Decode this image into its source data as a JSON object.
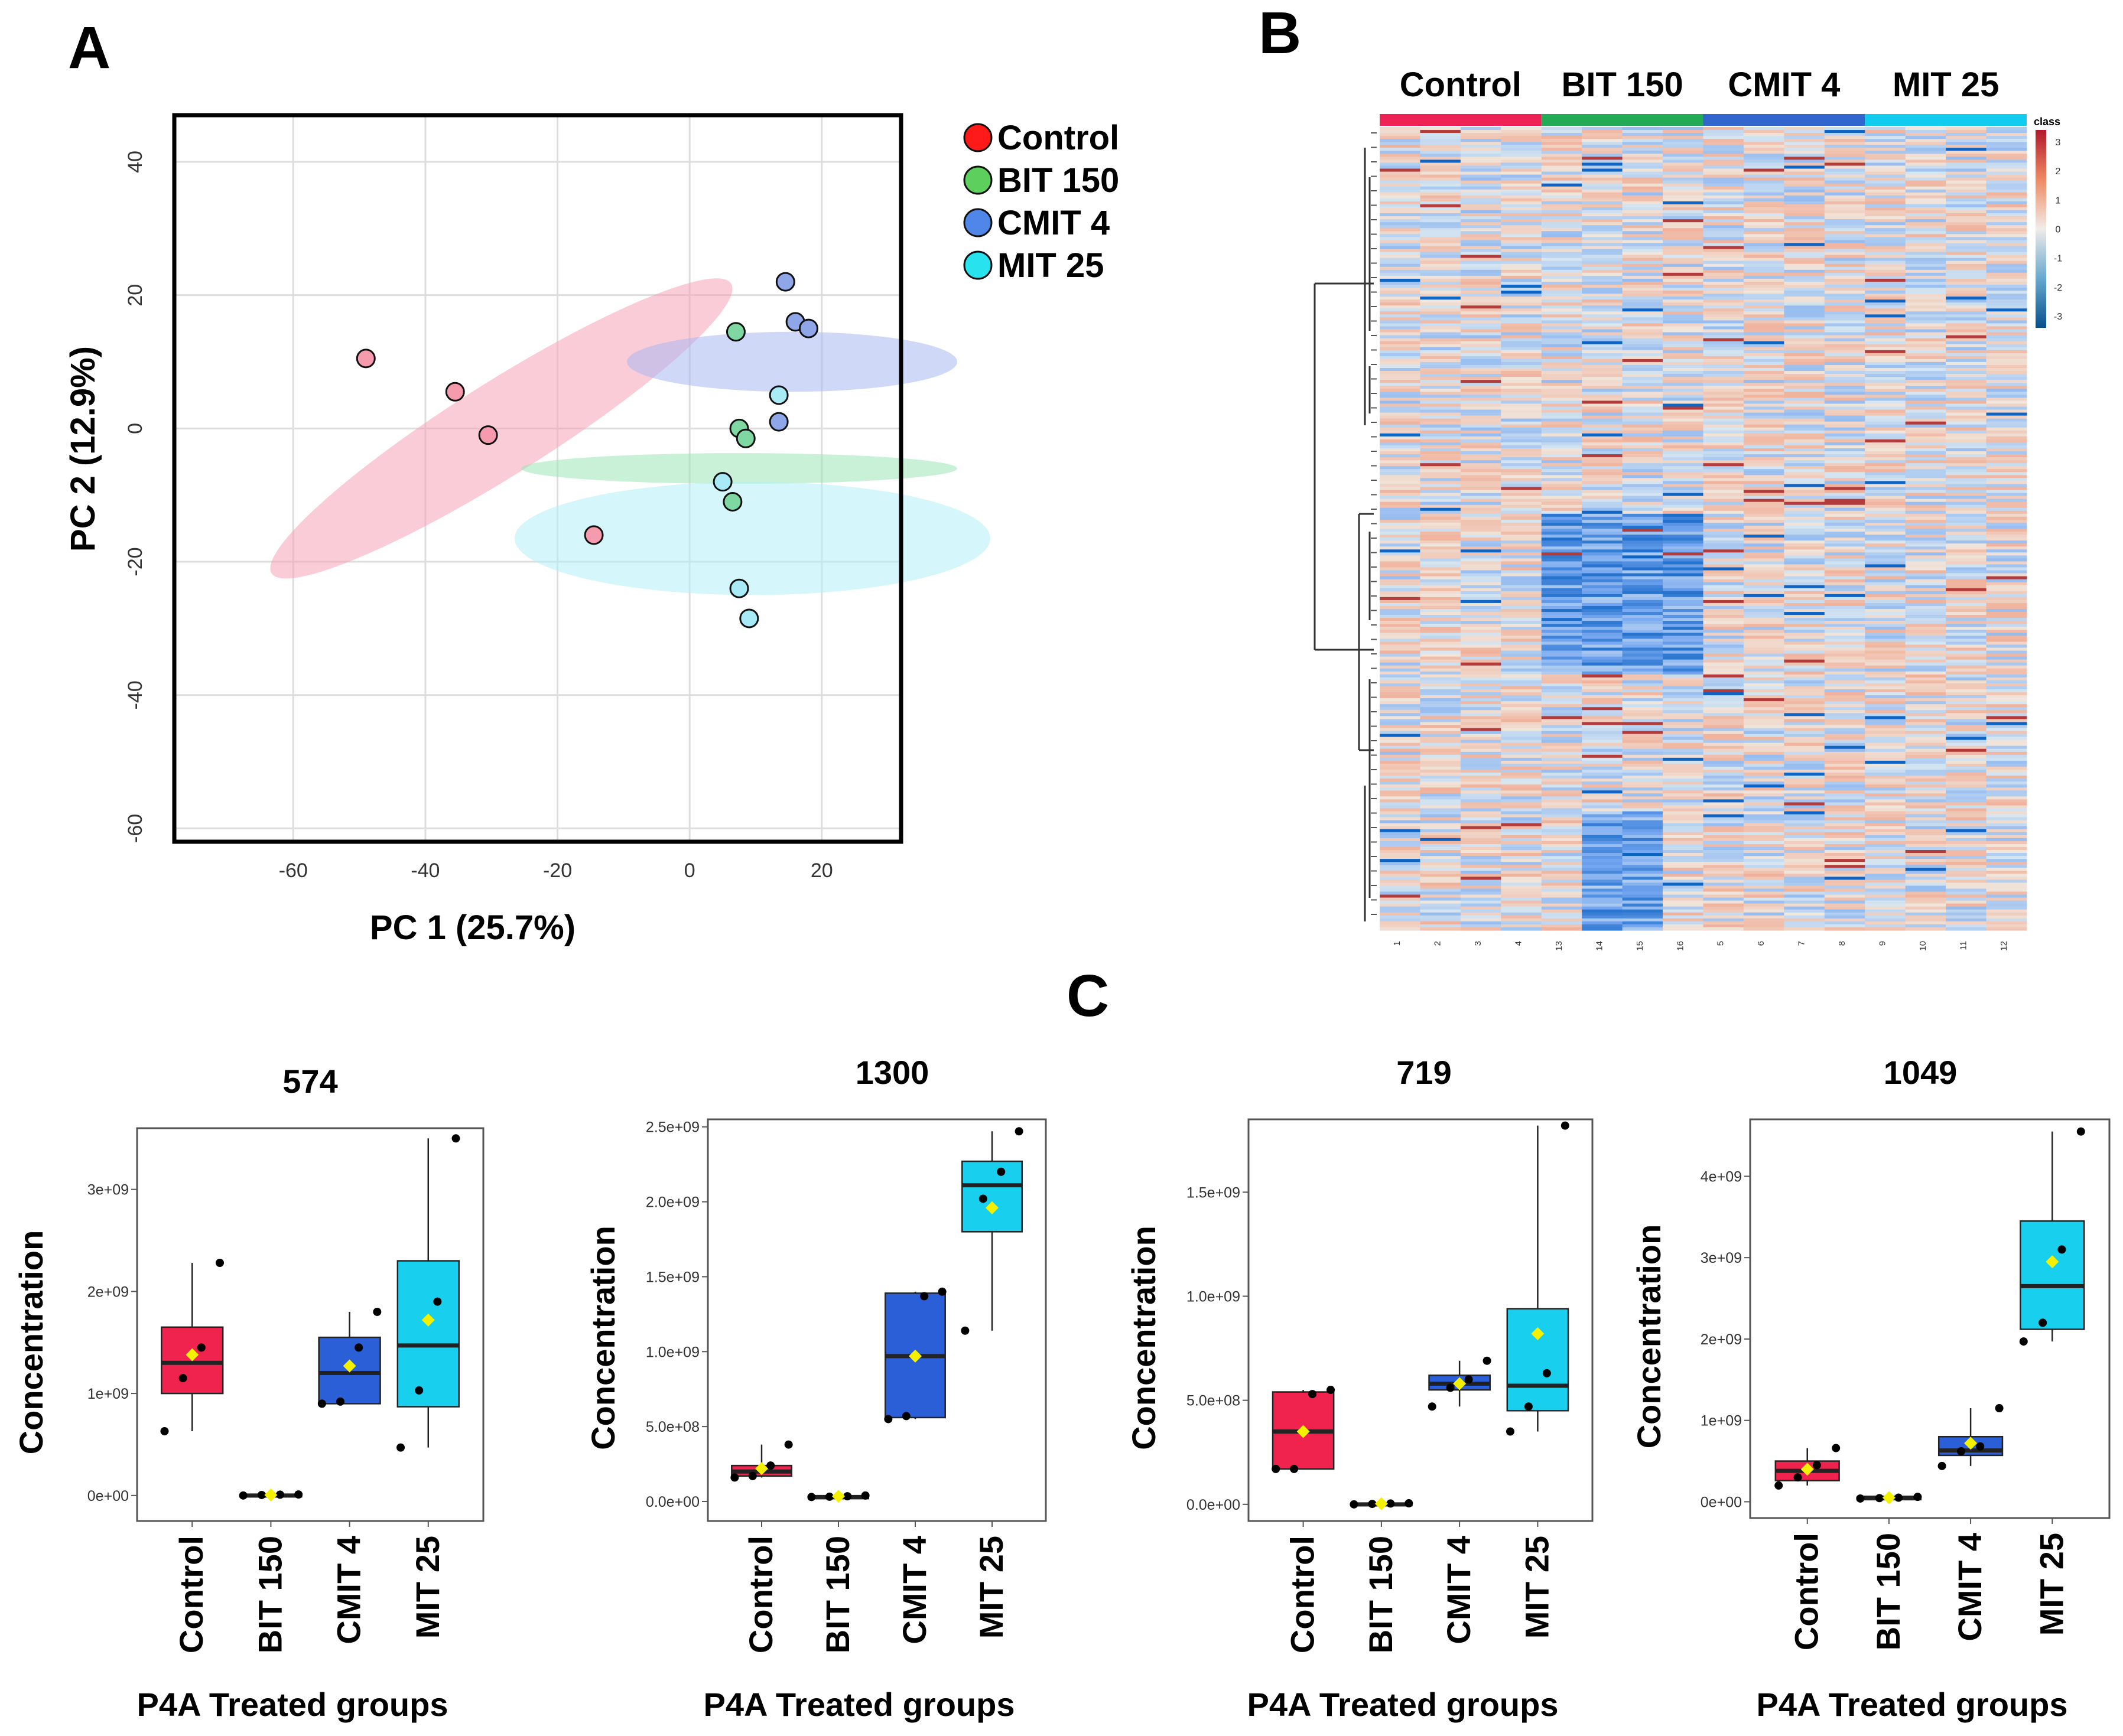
{
  "panels": {
    "a": "A",
    "b": "B",
    "c": "C"
  },
  "colors": {
    "Control": "#f0224e",
    "BIT 150": "#2e9e2e",
    "CMIT 4": "#2a5fd8",
    "MIT 25": "#19cfee"
  },
  "chart_data": [
    {
      "id": "pca",
      "type": "scatter",
      "xlabel": "PC 1 (25.7%)",
      "ylabel": "PC 2 (12.9%)",
      "xlim": [
        -78,
        32
      ],
      "ylim": [
        -62,
        47
      ],
      "xticks": [
        -60,
        -40,
        -20,
        0,
        20
      ],
      "yticks": [
        40,
        20,
        0,
        -20,
        -40,
        -60
      ],
      "legend": {
        "position": "right",
        "entries": [
          {
            "name": "Control",
            "color": "#ff1a1a"
          },
          {
            "name": "BIT 150",
            "color": "#5ccf5c"
          },
          {
            "name": "CMIT 4",
            "color": "#4f86e8"
          },
          {
            "name": "MIT 25",
            "color": "#28e2ee"
          }
        ]
      },
      "series": [
        {
          "name": "Control",
          "point_color": "#f69aae",
          "ellipse_color": "#f5a3b6",
          "points": [
            [
              -49,
              10.5
            ],
            [
              -35.5,
              5.5
            ],
            [
              -30.5,
              -1
            ],
            [
              -14.5,
              -16
            ]
          ],
          "ellipse": {
            "cx": -28.5,
            "cy": 0,
            "rx": 41,
            "ry": 7,
            "angle_data_deg": -32
          }
        },
        {
          "name": "BIT 150",
          "point_color": "#7fd7a2",
          "ellipse_color": "#9be5b6",
          "points": [
            [
              7,
              14.5
            ],
            [
              7.5,
              0
            ],
            [
              8.5,
              -1.5
            ],
            [
              6.5,
              -11
            ]
          ],
          "ellipse": {
            "cx": 7.5,
            "cy": -6,
            "rx": 2.3,
            "ry": 33,
            "angle_data_deg": 90
          }
        },
        {
          "name": "CMIT 4",
          "point_color": "#8fa6e8",
          "ellipse_color": "#aab8f0",
          "points": [
            [
              14.5,
              22
            ],
            [
              16,
              16
            ],
            [
              18,
              15
            ],
            [
              13.5,
              1
            ]
          ],
          "ellipse": {
            "cx": 15.5,
            "cy": 10,
            "rx": 4.5,
            "ry": 25,
            "angle_data_deg": 90
          }
        },
        {
          "name": "MIT 25",
          "point_color": "#a8eaf5",
          "ellipse_color": "#b2eef7",
          "points": [
            [
              13.5,
              5
            ],
            [
              5,
              -8
            ],
            [
              7.5,
              -24
            ],
            [
              9,
              -28.5
            ]
          ],
          "ellipse": {
            "cx": 9.5,
            "cy": -16.5,
            "rx": 8.5,
            "ry": 36,
            "angle_data_deg": 90
          }
        }
      ]
    },
    {
      "id": "heatmap",
      "type": "heatmap",
      "groups": [
        "Control",
        "BIT 150",
        "CMIT 4",
        "MIT 25"
      ],
      "group_colors": [
        "#ee2255",
        "#22aa55",
        "#3366cc",
        "#11ccee"
      ],
      "columns": [
        "1",
        "2",
        "3",
        "4",
        "13",
        "14",
        "15",
        "16",
        "5",
        "6",
        "7",
        "8",
        "9",
        "10",
        "11",
        "12"
      ],
      "colorbar_title": "class",
      "colorbar_ticks": [
        "3",
        "2",
        "1",
        "0",
        "-1",
        "-2",
        "-3"
      ],
      "scale": [
        -3,
        3
      ]
    },
    {
      "id": "box-574",
      "type": "box",
      "title": "574",
      "xlabel": "P4A Treated groups",
      "ylabel": "Concentration",
      "ylim": [
        -250000000.0,
        3600000000.0
      ],
      "yticks": [
        {
          "v": 0,
          "label": "0e+00"
        },
        {
          "v": 1000000000.0,
          "label": "1e+09"
        },
        {
          "v": 2000000000.0,
          "label": "2e+09"
        },
        {
          "v": 3000000000.0,
          "label": "3e+09"
        }
      ],
      "categories": [
        "Control",
        "BIT 150",
        "CMIT 4",
        "MIT 25"
      ],
      "boxes": [
        {
          "min": 630000000.0,
          "q1": 1000000000.0,
          "median": 1300000000.0,
          "q3": 1650000000.0,
          "max": 2280000000.0,
          "mean": 1380000000.0,
          "points": [
            630000000.0,
            1150000000.0,
            1450000000.0,
            2280000000.0
          ]
        },
        {
          "min": 0.0,
          "q1": 0.0,
          "median": 0.0,
          "q3": 10000000.0,
          "max": 10000000.0,
          "mean": 5000000.0,
          "points": [
            0.0,
            5000000.0,
            8000000.0,
            10000000.0
          ]
        },
        {
          "min": 900000000.0,
          "q1": 900000000.0,
          "median": 1200000000.0,
          "q3": 1550000000.0,
          "max": 1800000000.0,
          "mean": 1270000000.0,
          "points": [
            900000000.0,
            920000000.0,
            1450000000.0,
            1800000000.0
          ]
        },
        {
          "min": 470000000.0,
          "q1": 870000000.0,
          "median": 1470000000.0,
          "q3": 2300000000.0,
          "max": 3500000000.0,
          "mean": 1720000000.0,
          "points": [
            470000000.0,
            1030000000.0,
            1900000000.0,
            3500000000.0
          ]
        }
      ]
    },
    {
      "id": "box-1300",
      "type": "box",
      "title": "1300",
      "xlabel": "P4A Treated groups",
      "ylabel": "Concentration",
      "ylim": [
        -130000000.0,
        2550000000.0
      ],
      "yticks": [
        {
          "v": 0,
          "label": "0.0e+00"
        },
        {
          "v": 500000000.0,
          "label": "5.0e+08"
        },
        {
          "v": 1000000000.0,
          "label": "1.0e+09"
        },
        {
          "v": 1500000000.0,
          "label": "1.5e+09"
        },
        {
          "v": 2000000000.0,
          "label": "2.0e+09"
        },
        {
          "v": 2500000000.0,
          "label": "2.5e+09"
        }
      ],
      "categories": [
        "Control",
        "BIT 150",
        "CMIT 4",
        "MIT 25"
      ],
      "boxes": [
        {
          "min": 160000000.0,
          "q1": 170000000.0,
          "median": 200000000.0,
          "q3": 240000000.0,
          "max": 380000000.0,
          "mean": 220000000.0,
          "points": [
            160000000.0,
            170000000.0,
            240000000.0,
            380000000.0
          ]
        },
        {
          "min": 30000000.0,
          "q1": 30000000.0,
          "median": 30000000.0,
          "q3": 35000000.0,
          "max": 40000000.0,
          "mean": 35000000.0,
          "points": [
            30000000.0,
            32000000.0,
            35000000.0,
            40000000.0
          ]
        },
        {
          "min": 550000000.0,
          "q1": 560000000.0,
          "median": 970000000.0,
          "q3": 1390000000.0,
          "max": 1400000000.0,
          "mean": 970000000.0,
          "points": [
            550000000.0,
            570000000.0,
            1370000000.0,
            1400000000.0
          ]
        },
        {
          "min": 1140000000.0,
          "q1": 1800000000.0,
          "median": 2110000000.0,
          "q3": 2270000000.0,
          "max": 2470000000.0,
          "mean": 1960000000.0,
          "points": [
            1140000000.0,
            2020000000.0,
            2200000000.0,
            2470000000.0
          ]
        }
      ]
    },
    {
      "id": "box-719",
      "type": "box",
      "title": "719",
      "xlabel": "P4A Treated groups",
      "ylabel": "Concentration",
      "ylim": [
        -80000000.0,
        1850000000.0
      ],
      "yticks": [
        {
          "v": 0,
          "label": "0.0e+00"
        },
        {
          "v": 500000000.0,
          "label": "5.0e+08"
        },
        {
          "v": 1000000000.0,
          "label": "1.0e+09"
        },
        {
          "v": 1500000000.0,
          "label": "1.5e+09"
        }
      ],
      "categories": [
        "Control",
        "BIT 150",
        "CMIT 4",
        "MIT 25"
      ],
      "boxes": [
        {
          "min": 170000000.0,
          "q1": 170000000.0,
          "median": 350000000.0,
          "q3": 540000000.0,
          "max": 550000000.0,
          "mean": 350000000.0,
          "points": [
            170000000.0,
            170000000.0,
            530000000.0,
            550000000.0
          ]
        },
        {
          "min": 0.0,
          "q1": 0.0,
          "median": 0.0,
          "q3": 5000000.0,
          "max": 5000000.0,
          "mean": 3000000.0,
          "points": [
            0.0,
            2000000.0,
            4000000.0,
            5000000.0
          ]
        },
        {
          "min": 470000000.0,
          "q1": 550000000.0,
          "median": 580000000.0,
          "q3": 620000000.0,
          "max": 690000000.0,
          "mean": 580000000.0,
          "points": [
            470000000.0,
            560000000.0,
            600000000.0,
            690000000.0
          ]
        },
        {
          "min": 350000000.0,
          "q1": 450000000.0,
          "median": 570000000.0,
          "q3": 940000000.0,
          "max": 1820000000.0,
          "mean": 820000000.0,
          "points": [
            350000000.0,
            470000000.0,
            630000000.0,
            1820000000.0
          ]
        }
      ]
    },
    {
      "id": "box-1049",
      "type": "box",
      "title": "1049",
      "xlabel": "P4A Treated groups",
      "ylabel": "Concentration",
      "ylim": [
        -200000000.0,
        4700000000.0
      ],
      "yticks": [
        {
          "v": 0,
          "label": "0e+00"
        },
        {
          "v": 1000000000.0,
          "label": "1e+09"
        },
        {
          "v": 2000000000.0,
          "label": "2e+09"
        },
        {
          "v": 3000000000.0,
          "label": "3e+09"
        },
        {
          "v": 4000000000.0,
          "label": "4e+09"
        }
      ],
      "categories": [
        "Control",
        "BIT 150",
        "CMIT 4",
        "MIT 25"
      ],
      "boxes": [
        {
          "min": 200000000.0,
          "q1": 260000000.0,
          "median": 380000000.0,
          "q3": 500000000.0,
          "max": 660000000.0,
          "mean": 400000000.0,
          "points": [
            200000000.0,
            300000000.0,
            450000000.0,
            660000000.0
          ]
        },
        {
          "min": 40000000.0,
          "q1": 40000000.0,
          "median": 50000000.0,
          "q3": 55000000.0,
          "max": 60000000.0,
          "mean": 50000000.0,
          "points": [
            40000000.0,
            45000000.0,
            50000000.0,
            60000000.0
          ]
        },
        {
          "min": 440000000.0,
          "q1": 570000000.0,
          "median": 630000000.0,
          "q3": 800000000.0,
          "max": 1150000000.0,
          "mean": 720000000.0,
          "points": [
            440000000.0,
            620000000.0,
            680000000.0,
            1150000000.0
          ]
        },
        {
          "min": 1970000000.0,
          "q1": 2120000000.0,
          "median": 2650000000.0,
          "q3": 3450000000.0,
          "max": 4550000000.0,
          "mean": 2950000000.0,
          "points": [
            1970000000.0,
            2200000000.0,
            3100000000.0,
            4550000000.0
          ]
        }
      ]
    }
  ]
}
